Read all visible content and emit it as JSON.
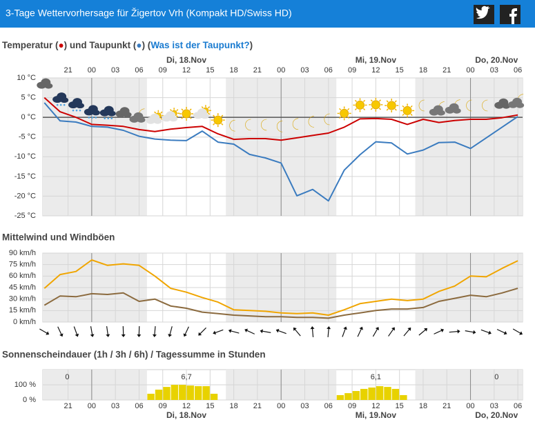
{
  "header": {
    "title": "3-Tage Wettervorhersage für Žigertov Vrh (Kompakt HD/Swiss HD)"
  },
  "time_axis": {
    "xlim": [
      -6.2,
      54.6
    ],
    "hour_ticks": [
      {
        "value": -3,
        "label": "21"
      },
      {
        "value": 0,
        "label": "00"
      },
      {
        "value": 3,
        "label": "03"
      },
      {
        "value": 6,
        "label": "06"
      },
      {
        "value": 9,
        "label": "09"
      },
      12,
      15,
      18,
      21,
      {
        "value": 24,
        "label": "00"
      },
      {
        "value": 27,
        "label": "03"
      },
      {
        "value": 30,
        "label": "06"
      },
      {
        "value": 33,
        "label": "09"
      },
      {
        "value": 36,
        "label": "12"
      },
      {
        "value": 39,
        "label": "15"
      },
      {
        "value": 42,
        "label": "18"
      },
      {
        "value": 45,
        "label": "21"
      },
      {
        "value": 48,
        "label": "00"
      },
      {
        "value": 51,
        "label": "03"
      },
      {
        "value": 54,
        "label": "06"
      }
    ],
    "midnights": [
      0,
      24,
      48
    ],
    "day_labels": [
      "Di, 18.Nov",
      "Mi, 19.Nov",
      "Do, 20.Nov"
    ],
    "daylight": [
      [
        7,
        17
      ],
      [
        31,
        41
      ]
    ]
  },
  "chart_data": [
    {
      "type": "line",
      "title_parts": [
        "Temperatur (",
        "●",
        ") und Taupunkt (",
        "●",
        ") (",
        "Was ist der Taupunkt?",
        ")"
      ],
      "x": [
        -6,
        -4,
        -2,
        0,
        2,
        4,
        6,
        8,
        10,
        12,
        14,
        16,
        18,
        20,
        22,
        24,
        26,
        28,
        30,
        32,
        34,
        36,
        38,
        40,
        42,
        44,
        46,
        48,
        50,
        52,
        54
      ],
      "series": [
        {
          "name": "Temperatur",
          "color": "#cc0000",
          "values": [
            5.0,
            1.4,
            0,
            -1.8,
            -2.0,
            -2.3,
            -3.1,
            -3.6,
            -3.0,
            -2.6,
            -2.3,
            -4.2,
            -5.6,
            -5.4,
            -5.4,
            -5.8,
            -5.2,
            -4.6,
            -4.0,
            -2.5,
            -0.4,
            -0.3,
            -0.5,
            -1.8,
            -0.5,
            -1.3,
            -0.8,
            -0.5,
            -0.5,
            -0.1,
            0.6
          ]
        },
        {
          "name": "Taupunkt",
          "color": "#3a7bbf",
          "values": [
            3.7,
            -0.9,
            -1.2,
            -2.3,
            -2.5,
            -3.3,
            -4.8,
            -5.5,
            -5.8,
            -5.9,
            -3.5,
            -6.3,
            -6.8,
            -9.4,
            -10.3,
            -11.6,
            -19.9,
            -18.3,
            -21.2,
            -13.4,
            -9.5,
            -6.2,
            -6.5,
            -9.3,
            -8.3,
            -6.4,
            -6.3,
            -7.9,
            -5.2,
            -2.5,
            0.2
          ]
        }
      ],
      "icons": [
        "cloud",
        "snow",
        "snow",
        "snow",
        "snow",
        "cloud",
        "night-cloud",
        "day-cloud",
        "day-cloud",
        "sun",
        "day-cloud",
        "sun",
        "moon",
        "moon",
        "moon",
        "moon",
        "moon",
        "moon",
        "moon",
        "sun",
        "sun",
        "sun",
        "sun",
        "sun",
        "moon",
        "night-cloud",
        "night-cloud",
        "moon",
        "moon",
        "cloud",
        "night-cloud"
      ],
      "ylim": [
        -25,
        10
      ],
      "yticks": [
        {
          "value": 10,
          "label": "10 °C"
        },
        {
          "value": 5,
          "label": "5 °C"
        },
        {
          "value": 0,
          "label": "0 °C"
        },
        {
          "value": -5,
          "label": "-5 °C"
        },
        {
          "value": -10,
          "label": "-10 °C"
        },
        {
          "value": -15,
          "label": "-15 °C"
        },
        {
          "value": -20,
          "label": "-20 °C"
        },
        {
          "value": -25,
          "label": "-25 °C"
        }
      ],
      "grid": true,
      "zero_line": true
    },
    {
      "type": "line",
      "title": "Mittelwind und Windböen",
      "x": [
        -6,
        -4,
        -2,
        0,
        2,
        4,
        6,
        8,
        10,
        12,
        14,
        16,
        18,
        20,
        22,
        24,
        26,
        28,
        30,
        32,
        34,
        36,
        38,
        40,
        42,
        44,
        46,
        48,
        50,
        52,
        54
      ],
      "series": [
        {
          "name": "Windböen",
          "color": "#f0a500",
          "values": [
            44,
            62,
            66,
            81,
            74,
            76,
            74,
            60,
            44,
            39,
            32,
            26,
            16,
            15,
            14,
            12,
            11,
            12,
            9,
            16,
            24,
            27,
            30,
            28,
            30,
            40,
            47,
            60,
            59,
            70,
            80
          ]
        },
        {
          "name": "Mittelwind",
          "color": "#8b6a3e",
          "values": [
            22,
            34,
            33,
            37,
            36,
            38,
            27,
            30,
            21,
            18,
            13,
            11,
            9,
            8,
            7,
            7,
            6,
            6,
            5,
            9,
            12,
            15,
            17,
            17,
            19,
            27,
            31,
            35,
            33,
            38,
            44
          ]
        }
      ],
      "wind_direction": [
        120,
        155,
        160,
        170,
        172,
        178,
        182,
        185,
        195,
        205,
        225,
        250,
        285,
        295,
        280,
        290,
        320,
        355,
        5,
        20,
        25,
        30,
        35,
        40,
        50,
        65,
        85,
        100,
        110,
        115,
        120
      ],
      "ylim": [
        0,
        90
      ],
      "yticks": [
        {
          "value": 90,
          "label": "90 km/h"
        },
        {
          "value": 75,
          "label": "75 km/h"
        },
        {
          "value": 60,
          "label": "60 km/h"
        },
        {
          "value": 45,
          "label": "45 km/h"
        },
        {
          "value": 30,
          "label": "30 km/h"
        },
        {
          "value": 15,
          "label": "15 km/h"
        },
        {
          "value": 0,
          "label": "0 km/h"
        }
      ],
      "grid": true
    },
    {
      "type": "bar",
      "title": "Sonnenscheindauer (1h / 3h / 6h) / Tagessumme in Stunden",
      "x": [
        7,
        8,
        9,
        10,
        11,
        12,
        13,
        14,
        15,
        31,
        32,
        33,
        34,
        35,
        36,
        37,
        38,
        39
      ],
      "values": [
        41,
        68,
        86,
        100,
        100,
        95,
        91,
        91,
        41,
        32,
        45,
        59,
        73,
        82,
        91,
        86,
        73,
        32
      ],
      "color": "#e8d200",
      "day_totals": [
        0,
        {
          "value": 6.7,
          "label": "6,7"
        },
        {
          "value": 6.1,
          "label": "6,1"
        },
        0
      ],
      "ylim": [
        0,
        200
      ],
      "yticks": [
        {
          "value": 100,
          "label": "100 %"
        },
        {
          "value": 0,
          "label": "0 %"
        }
      ],
      "grid": true
    }
  ]
}
